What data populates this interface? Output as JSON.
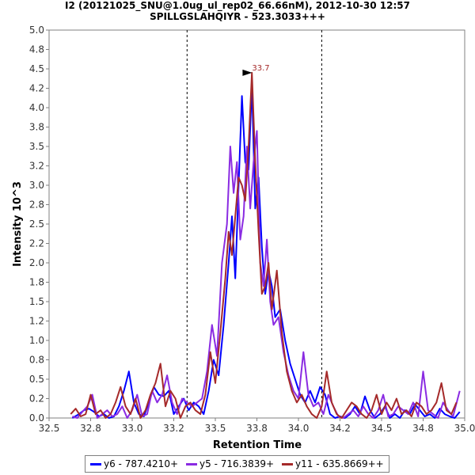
{
  "chart_data": {
    "type": "line",
    "title": "I2 (20121025_SNU@1.0ug_ul_rep02_66.66nM), 2012-10-30 12:57",
    "subtitle": "SPILLGSLAHQIYR - 523.3033+++",
    "xlabel": "Retention Time",
    "ylabel": "Intensity 10^3",
    "xlim": [
      32.5,
      35.0
    ],
    "ylim": [
      0.0,
      5.0
    ],
    "xticks": [
      "32.5",
      "32.8",
      "33.0",
      "33.2",
      "33.5",
      "33.8",
      "34.0",
      "34.2",
      "34.5",
      "34.8",
      "35.0"
    ],
    "yticks": [
      "0.0",
      "0.2",
      "0.5",
      "0.8",
      "1.0",
      "1.2",
      "1.5",
      "1.8",
      "2.0",
      "2.2",
      "2.5",
      "2.8",
      "3.0",
      "3.2",
      "3.5",
      "3.8",
      "4.0",
      "4.2",
      "4.5",
      "4.8",
      "5.0"
    ],
    "boundaries": [
      33.33,
      34.14
    ],
    "peak_annotation": {
      "label": "33.7",
      "x": 33.74,
      "y": 4.45
    },
    "series": [
      {
        "name": "y6 - 787.4210+",
        "color": "#0000ff",
        "x": [
          32.64,
          32.68,
          32.71,
          32.74,
          32.77,
          32.8,
          32.83,
          32.86,
          32.89,
          32.92,
          32.95,
          32.98,
          33.01,
          33.04,
          33.07,
          33.1,
          33.13,
          33.16,
          33.19,
          33.22,
          33.25,
          33.28,
          33.31,
          33.34,
          33.37,
          33.4,
          33.43,
          33.46,
          33.49,
          33.52,
          33.55,
          33.58,
          33.6,
          33.62,
          33.64,
          33.66,
          33.68,
          33.7,
          33.72,
          33.74,
          33.76,
          33.78,
          33.8,
          33.82,
          33.84,
          33.86,
          33.89,
          33.92,
          33.95,
          33.98,
          34.01,
          34.04,
          34.07,
          34.1,
          34.13,
          34.16,
          34.19,
          34.22,
          34.25,
          34.28,
          34.31,
          34.34,
          34.37,
          34.4,
          34.43,
          34.46,
          34.49,
          34.52,
          34.55,
          34.58,
          34.61,
          34.64,
          34.67,
          34.7,
          34.73,
          34.76,
          34.79,
          34.82,
          34.85,
          34.88,
          34.91,
          34.94,
          34.97
        ],
        "values": [
          0.0,
          0.05,
          0.1,
          0.12,
          0.08,
          0.02,
          0.05,
          0.0,
          0.02,
          0.15,
          0.35,
          0.6,
          0.2,
          0.05,
          0.02,
          0.2,
          0.4,
          0.3,
          0.28,
          0.35,
          0.05,
          0.15,
          0.25,
          0.1,
          0.2,
          0.15,
          0.05,
          0.35,
          0.75,
          0.55,
          1.2,
          2.0,
          2.6,
          1.8,
          3.0,
          4.15,
          3.3,
          3.2,
          4.3,
          2.7,
          3.1,
          2.2,
          1.6,
          1.9,
          1.7,
          1.3,
          1.4,
          1.0,
          0.7,
          0.5,
          0.3,
          0.2,
          0.35,
          0.2,
          0.4,
          0.3,
          0.05,
          0.0,
          0.02,
          0.0,
          0.05,
          0.15,
          0.05,
          0.28,
          0.1,
          0.0,
          0.05,
          0.15,
          0.0,
          0.05,
          0.0,
          0.1,
          0.05,
          0.18,
          0.1,
          0.02,
          0.05,
          0.0,
          0.12,
          0.05,
          0.02,
          0.0,
          0.08
        ]
      },
      {
        "name": "y5 - 716.3839+",
        "color": "#8a2be2",
        "x": [
          32.64,
          32.67,
          32.7,
          32.73,
          32.76,
          32.79,
          32.82,
          32.85,
          32.88,
          32.91,
          32.94,
          32.97,
          33.0,
          33.03,
          33.06,
          33.09,
          33.12,
          33.15,
          33.18,
          33.21,
          33.24,
          33.27,
          33.3,
          33.33,
          33.36,
          33.39,
          33.42,
          33.45,
          33.48,
          33.51,
          33.54,
          33.57,
          33.59,
          33.61,
          33.63,
          33.65,
          33.67,
          33.69,
          33.71,
          33.73,
          33.75,
          33.77,
          33.79,
          33.81,
          33.83,
          33.85,
          33.88,
          33.91,
          33.94,
          33.97,
          34.0,
          34.03,
          34.06,
          34.09,
          34.12,
          34.15,
          34.18,
          34.21,
          34.24,
          34.27,
          34.3,
          34.33,
          34.36,
          34.39,
          34.42,
          34.45,
          34.48,
          34.51,
          34.54,
          34.57,
          34.6,
          34.63,
          34.66,
          34.69,
          34.72,
          34.75,
          34.78,
          34.81,
          34.84,
          34.87,
          34.9,
          34.93,
          34.97
        ],
        "values": [
          0.02,
          0.0,
          0.08,
          0.15,
          0.3,
          0.0,
          0.05,
          0.1,
          0.02,
          0.05,
          0.15,
          0.0,
          0.1,
          0.3,
          0.02,
          0.05,
          0.35,
          0.2,
          0.3,
          0.55,
          0.2,
          0.05,
          0.25,
          0.2,
          0.15,
          0.2,
          0.25,
          0.6,
          1.2,
          0.8,
          2.0,
          2.5,
          3.5,
          2.9,
          3.3,
          2.3,
          2.6,
          3.5,
          2.7,
          3.3,
          3.7,
          2.0,
          1.7,
          2.3,
          1.5,
          1.2,
          1.3,
          0.85,
          0.55,
          0.35,
          0.25,
          0.85,
          0.3,
          0.15,
          0.2,
          0.05,
          0.3,
          0.15,
          0.02,
          0.0,
          0.05,
          0.1,
          0.02,
          0.15,
          0.05,
          0.0,
          0.1,
          0.3,
          0.02,
          0.05,
          0.15,
          0.1,
          0.05,
          0.2,
          0.02,
          0.6,
          0.1,
          0.05,
          0.0,
          0.2,
          0.1,
          0.02,
          0.35
        ]
      },
      {
        "name": "y11 - 635.8669++",
        "color": "#a52a2a",
        "x": [
          32.63,
          32.66,
          32.69,
          32.72,
          32.75,
          32.78,
          32.81,
          32.84,
          32.87,
          32.9,
          32.93,
          32.96,
          32.99,
          33.02,
          33.05,
          33.08,
          33.11,
          33.14,
          33.17,
          33.2,
          33.23,
          33.26,
          33.29,
          33.32,
          33.35,
          33.38,
          33.41,
          33.44,
          33.47,
          33.5,
          33.53,
          33.56,
          33.58,
          33.6,
          33.62,
          33.64,
          33.66,
          33.68,
          33.7,
          33.72,
          33.74,
          33.76,
          33.78,
          33.8,
          33.82,
          33.84,
          33.87,
          33.9,
          33.93,
          33.96,
          33.99,
          34.02,
          34.05,
          34.08,
          34.11,
          34.14,
          34.17,
          34.2,
          34.23,
          34.26,
          34.29,
          34.32,
          34.35,
          34.38,
          34.41,
          34.44,
          34.47,
          34.5,
          34.53,
          34.56,
          34.59,
          34.62,
          34.65,
          34.68,
          34.71,
          34.74,
          34.77,
          34.8,
          34.83,
          34.86,
          34.89,
          34.92,
          34.95
        ],
        "values": [
          0.05,
          0.12,
          0.02,
          0.05,
          0.3,
          0.05,
          0.1,
          0.0,
          0.05,
          0.2,
          0.4,
          0.15,
          0.05,
          0.25,
          0.0,
          0.1,
          0.3,
          0.45,
          0.7,
          0.15,
          0.35,
          0.25,
          0.0,
          0.15,
          0.2,
          0.1,
          0.05,
          0.3,
          0.85,
          0.45,
          1.1,
          1.8,
          2.4,
          2.1,
          2.6,
          3.1,
          3.0,
          2.8,
          3.5,
          4.45,
          3.3,
          2.4,
          1.6,
          1.7,
          2.0,
          1.4,
          1.9,
          1.1,
          0.6,
          0.35,
          0.2,
          0.3,
          0.15,
          0.05,
          0.0,
          0.15,
          0.6,
          0.2,
          0.05,
          0.0,
          0.1,
          0.2,
          0.15,
          0.05,
          0.0,
          0.1,
          0.3,
          0.05,
          0.2,
          0.1,
          0.25,
          0.05,
          0.1,
          0.02,
          0.2,
          0.15,
          0.05,
          0.1,
          0.2,
          0.45,
          0.1,
          0.05,
          0.2
        ]
      }
    ]
  }
}
